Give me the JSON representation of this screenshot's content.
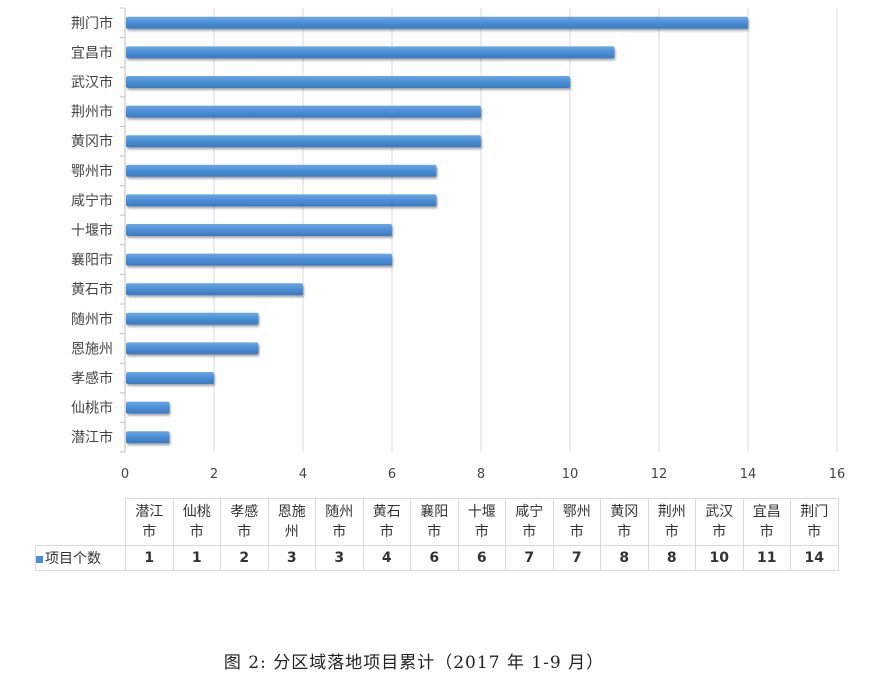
{
  "chart_data": {
    "type": "bar",
    "orientation": "horizontal",
    "categories": [
      "荆门市",
      "宜昌市",
      "武汉市",
      "荆州市",
      "黄冈市",
      "鄂州市",
      "咸宁市",
      "十堰市",
      "襄阳市",
      "黄石市",
      "随州市",
      "恩施州",
      "孝感市",
      "仙桃市",
      "潜江市"
    ],
    "series": [
      {
        "name": "项目个数",
        "values": [
          14,
          11,
          10,
          8,
          8,
          7,
          7,
          6,
          6,
          4,
          3,
          3,
          2,
          1,
          1
        ]
      }
    ],
    "xlim": [
      0,
      16
    ],
    "xticks": [
      "0",
      "2",
      "4",
      "6",
      "8",
      "10",
      "12",
      "14",
      "16"
    ],
    "grid": true,
    "color": "#4a8fd6"
  },
  "table": {
    "series_label": "项目个数",
    "headers": [
      [
        "潜江",
        "市"
      ],
      [
        "仙桃",
        "市"
      ],
      [
        "孝感",
        "市"
      ],
      [
        "恩施",
        "州"
      ],
      [
        "随州",
        "市"
      ],
      [
        "黄石",
        "市"
      ],
      [
        "襄阳",
        "市"
      ],
      [
        "十堰",
        "市"
      ],
      [
        "咸宁",
        "市"
      ],
      [
        "鄂州",
        "市"
      ],
      [
        "黄冈",
        "市"
      ],
      [
        "荆州",
        "市"
      ],
      [
        "武汉",
        "市"
      ],
      [
        "宜昌",
        "市"
      ],
      [
        "荆门",
        "市"
      ]
    ],
    "values": [
      "1",
      "1",
      "2",
      "3",
      "3",
      "4",
      "6",
      "6",
      "7",
      "7",
      "8",
      "8",
      "10",
      "11",
      "14"
    ]
  },
  "caption": "图 2: 分区域落地项目累计（2017 年 1-9 月）"
}
